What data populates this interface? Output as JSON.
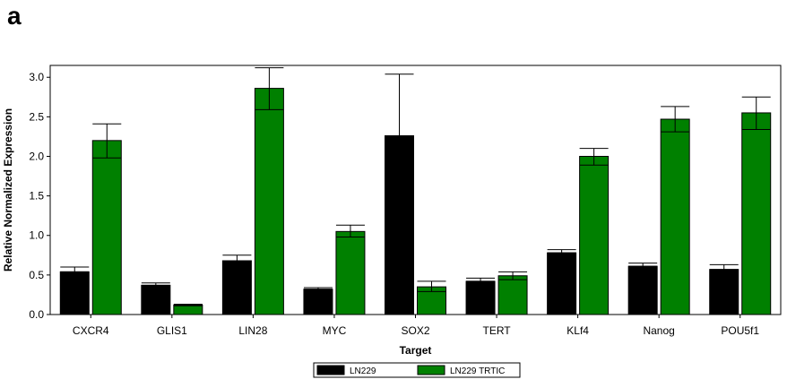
{
  "panel_label": "a",
  "chart_data": {
    "type": "bar",
    "xlabel": "Target",
    "ylabel": "Relative Normalized Expression",
    "ylim": [
      0,
      3.15
    ],
    "yticks": [
      0.0,
      0.5,
      1.0,
      1.5,
      2.0,
      2.5,
      3.0
    ],
    "ytick_labels": [
      "0.0",
      "0.5",
      "1.0",
      "1.5",
      "2.0",
      "2.5",
      "3.0"
    ],
    "categories": [
      "CXCR4",
      "GLIS1",
      "LIN28",
      "MYC",
      "SOX2",
      "TERT",
      "KLf4",
      "Nanog",
      "POU5f1"
    ],
    "series": [
      {
        "name": "LN229",
        "color": "#000000",
        "values": [
          0.54,
          0.37,
          0.68,
          0.32,
          2.26,
          0.42,
          0.78,
          0.61,
          0.57
        ],
        "error_upper": [
          0.6,
          0.4,
          0.75,
          0.34,
          3.04,
          0.46,
          0.82,
          0.65,
          0.63
        ],
        "error_lower": [
          0.54,
          0.37,
          0.68,
          0.32,
          2.26,
          0.42,
          0.78,
          0.61,
          0.57
        ]
      },
      {
        "name": "LN229 TRTIC",
        "color": "#008000",
        "values": [
          2.2,
          0.12,
          2.86,
          1.05,
          0.35,
          0.49,
          2.0,
          2.47,
          2.55
        ],
        "error_upper": [
          2.41,
          0.13,
          3.12,
          1.13,
          0.42,
          0.54,
          2.1,
          2.63,
          2.75
        ],
        "error_lower": [
          1.98,
          0.11,
          2.59,
          0.98,
          0.29,
          0.44,
          1.89,
          2.31,
          2.34
        ]
      }
    ],
    "grid": false,
    "legend_position": "bottom-center"
  }
}
